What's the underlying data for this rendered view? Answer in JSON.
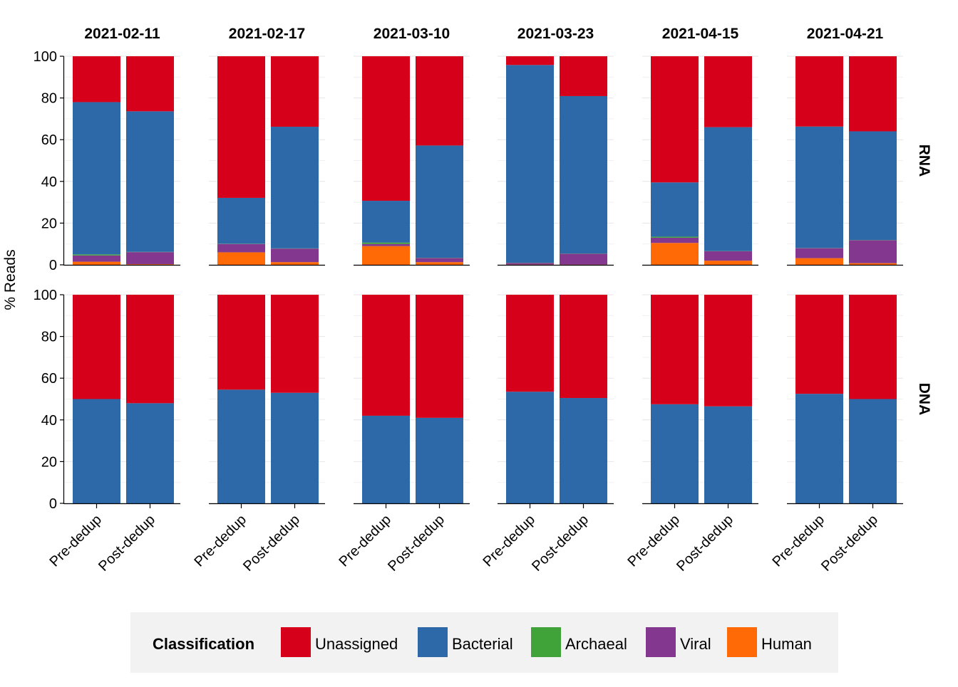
{
  "chart_data": {
    "type": "bar",
    "stacked": true,
    "ylabel": "% Reads",
    "ylim": [
      0,
      100
    ],
    "yticks": [
      0,
      20,
      40,
      60,
      80,
      100
    ],
    "grid": true,
    "legend_position": "bottom",
    "legend_title": "Classification",
    "facet_columns": [
      "2021-02-11",
      "2021-02-17",
      "2021-03-10",
      "2021-03-23",
      "2021-04-15",
      "2021-04-21"
    ],
    "facet_rows": [
      "RNA",
      "DNA"
    ],
    "categories": [
      "Pre-dedup",
      "Post-dedup"
    ],
    "classes": [
      {
        "name": "Unassigned",
        "color": "#d7001a"
      },
      {
        "name": "Bacterial",
        "color": "#2d69a8"
      },
      {
        "name": "Archaeal",
        "color": "#3fa33a"
      },
      {
        "name": "Viral",
        "color": "#83378f"
      },
      {
        "name": "Human",
        "color": "#ff6a06"
      }
    ],
    "stack_order": [
      "Human",
      "Viral",
      "Archaeal",
      "Bacterial",
      "Unassigned"
    ],
    "panels": {
      "RNA": [
        {
          "Pre-dedup": {
            "Human": 1.5,
            "Viral": 3.0,
            "Archaeal": 0.5,
            "Bacterial": 73.0,
            "Unassigned": 22.0
          },
          "Post-dedup": {
            "Human": 0.3,
            "Viral": 5.8,
            "Archaeal": 0.1,
            "Bacterial": 67.4,
            "Unassigned": 26.4
          }
        },
        {
          "Pre-dedup": {
            "Human": 6.0,
            "Viral": 4.0,
            "Archaeal": 0.1,
            "Bacterial": 22.0,
            "Unassigned": 67.9
          },
          "Post-dedup": {
            "Human": 1.3,
            "Viral": 6.5,
            "Archaeal": 0.1,
            "Bacterial": 58.3,
            "Unassigned": 33.8
          }
        },
        {
          "Pre-dedup": {
            "Human": 9.0,
            "Viral": 1.0,
            "Archaeal": 0.7,
            "Bacterial": 20.0,
            "Unassigned": 69.3
          },
          "Post-dedup": {
            "Human": 1.3,
            "Viral": 2.0,
            "Archaeal": 0.1,
            "Bacterial": 53.8,
            "Unassigned": 42.8
          }
        },
        {
          "Pre-dedup": {
            "Human": 0.1,
            "Viral": 0.8,
            "Archaeal": 0.1,
            "Bacterial": 94.8,
            "Unassigned": 4.2
          },
          "Post-dedup": {
            "Human": 0.1,
            "Viral": 5.2,
            "Archaeal": 0.1,
            "Bacterial": 75.5,
            "Unassigned": 19.1
          }
        },
        {
          "Pre-dedup": {
            "Human": 10.5,
            "Viral": 2.5,
            "Archaeal": 0.5,
            "Bacterial": 26.0,
            "Unassigned": 60.5
          },
          "Post-dedup": {
            "Human": 2.0,
            "Viral": 4.5,
            "Archaeal": 0.1,
            "Bacterial": 59.4,
            "Unassigned": 34.0
          }
        },
        {
          "Pre-dedup": {
            "Human": 3.2,
            "Viral": 4.8,
            "Archaeal": 0.1,
            "Bacterial": 58.2,
            "Unassigned": 33.7
          },
          "Post-dedup": {
            "Human": 0.8,
            "Viral": 11.0,
            "Archaeal": 0.1,
            "Bacterial": 52.1,
            "Unassigned": 36.0
          }
        }
      ],
      "DNA": [
        {
          "Pre-dedup": {
            "Human": 0,
            "Viral": 0,
            "Archaeal": 0,
            "Bacterial": 50.0,
            "Unassigned": 50.0
          },
          "Post-dedup": {
            "Human": 0,
            "Viral": 0,
            "Archaeal": 0,
            "Bacterial": 48.0,
            "Unassigned": 52.0
          }
        },
        {
          "Pre-dedup": {
            "Human": 0,
            "Viral": 0,
            "Archaeal": 0,
            "Bacterial": 54.5,
            "Unassigned": 45.5
          },
          "Post-dedup": {
            "Human": 0,
            "Viral": 0,
            "Archaeal": 0,
            "Bacterial": 53.0,
            "Unassigned": 47.0
          }
        },
        {
          "Pre-dedup": {
            "Human": 0,
            "Viral": 0,
            "Archaeal": 0,
            "Bacterial": 42.0,
            "Unassigned": 58.0
          },
          "Post-dedup": {
            "Human": 0,
            "Viral": 0,
            "Archaeal": 0,
            "Bacterial": 41.0,
            "Unassigned": 59.0
          }
        },
        {
          "Pre-dedup": {
            "Human": 0,
            "Viral": 0,
            "Archaeal": 0,
            "Bacterial": 53.5,
            "Unassigned": 46.5
          },
          "Post-dedup": {
            "Human": 0,
            "Viral": 0,
            "Archaeal": 0,
            "Bacterial": 50.5,
            "Unassigned": 49.5
          }
        },
        {
          "Pre-dedup": {
            "Human": 0,
            "Viral": 0,
            "Archaeal": 0,
            "Bacterial": 47.5,
            "Unassigned": 52.5
          },
          "Post-dedup": {
            "Human": 0,
            "Viral": 0,
            "Archaeal": 0,
            "Bacterial": 46.5,
            "Unassigned": 53.5
          }
        },
        {
          "Pre-dedup": {
            "Human": 0,
            "Viral": 0,
            "Archaeal": 0,
            "Bacterial": 52.5,
            "Unassigned": 47.5
          },
          "Post-dedup": {
            "Human": 0,
            "Viral": 0,
            "Archaeal": 0,
            "Bacterial": 50.0,
            "Unassigned": 50.0
          }
        }
      ]
    }
  }
}
